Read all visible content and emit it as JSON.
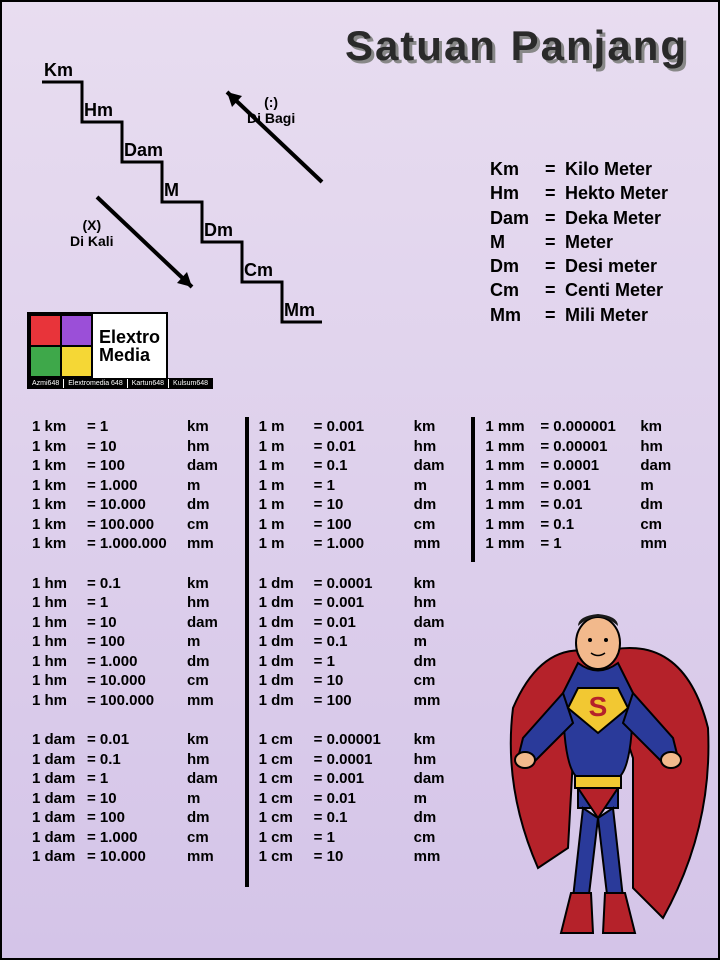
{
  "title": "Satuan Panjang",
  "stairs": {
    "steps": [
      "Km",
      "Hm",
      "Dam",
      "M",
      "Dm",
      "Cm",
      "Mm"
    ],
    "step_width": 40,
    "step_height": 40,
    "line_width": 3,
    "color": "#000000"
  },
  "arrows": {
    "up_label_1": "(:)",
    "up_label_2": "Di Bagi",
    "down_label_1": "(X)",
    "down_label_2": "Di Kali"
  },
  "legend": [
    {
      "abbr": "Km",
      "name": "Kilo Meter"
    },
    {
      "abbr": "Hm",
      "name": "Hekto Meter"
    },
    {
      "abbr": "Dam",
      "name": "Deka Meter"
    },
    {
      "abbr": "M",
      "name": "Meter"
    },
    {
      "abbr": "Dm",
      "name": "Desi meter"
    },
    {
      "abbr": "Cm",
      "name": "Centi Meter"
    },
    {
      "abbr": "Mm",
      "name": "Mili Meter"
    }
  ],
  "logo": {
    "name1": "Elextro",
    "name2": "Media",
    "colors": [
      "#e8343a",
      "#9b4fd8",
      "#3ea84a",
      "#f5d735"
    ],
    "subs": [
      "Azmi648",
      "Elextromedia 648",
      "Kartun648",
      "Kulsum648"
    ]
  },
  "columns": [
    {
      "blocks": [
        {
          "from": "1 km",
          "rows": [
            [
              "= 1",
              "km"
            ],
            [
              "= 10",
              "hm"
            ],
            [
              "= 100",
              "dam"
            ],
            [
              "= 1.000",
              "m"
            ],
            [
              "= 10.000",
              "dm"
            ],
            [
              "= 100.000",
              "cm"
            ],
            [
              "= 1.000.000",
              "mm"
            ]
          ]
        },
        {
          "from": "1 hm",
          "rows": [
            [
              "= 0.1",
              "km"
            ],
            [
              "= 1",
              "hm"
            ],
            [
              "= 10",
              "dam"
            ],
            [
              "= 100",
              "m"
            ],
            [
              "= 1.000",
              "dm"
            ],
            [
              "= 10.000",
              "cm"
            ],
            [
              "= 100.000",
              "mm"
            ]
          ]
        },
        {
          "from": "1 dam",
          "rows": [
            [
              "= 0.01",
              "km"
            ],
            [
              "= 0.1",
              "hm"
            ],
            [
              "= 1",
              "dam"
            ],
            [
              "= 10",
              "m"
            ],
            [
              "= 100",
              "dm"
            ],
            [
              "= 1.000",
              "cm"
            ],
            [
              "= 10.000",
              "mm"
            ]
          ]
        }
      ]
    },
    {
      "blocks": [
        {
          "from": "1 m",
          "rows": [
            [
              "= 0.001",
              "km"
            ],
            [
              "= 0.01",
              "hm"
            ],
            [
              "= 0.1",
              "dam"
            ],
            [
              "= 1",
              "m"
            ],
            [
              "= 10",
              "dm"
            ],
            [
              "= 100",
              "cm"
            ],
            [
              "= 1.000",
              "mm"
            ]
          ]
        },
        {
          "from": "1 dm",
          "rows": [
            [
              "= 0.0001",
              "km"
            ],
            [
              "= 0.001",
              "hm"
            ],
            [
              "= 0.01",
              "dam"
            ],
            [
              "= 0.1",
              "m"
            ],
            [
              "= 1",
              "dm"
            ],
            [
              "= 10",
              "cm"
            ],
            [
              "= 100",
              "mm"
            ]
          ]
        },
        {
          "from": "1 cm",
          "rows": [
            [
              "= 0.00001",
              "km"
            ],
            [
              "= 0.0001",
              "hm"
            ],
            [
              "= 0.001",
              "dam"
            ],
            [
              "= 0.01",
              "m"
            ],
            [
              "= 0.1",
              "dm"
            ],
            [
              "= 1",
              "cm"
            ],
            [
              "= 10",
              "mm"
            ]
          ]
        }
      ]
    },
    {
      "blocks": [
        {
          "from": "1 mm",
          "rows": [
            [
              "= 0.000001",
              "km"
            ],
            [
              "= 0.00001",
              "hm"
            ],
            [
              "= 0.0001",
              "dam"
            ],
            [
              "= 0.001",
              "m"
            ],
            [
              "= 0.01",
              "dm"
            ],
            [
              "= 0.1",
              "cm"
            ],
            [
              "= 1",
              "mm"
            ]
          ]
        }
      ]
    }
  ],
  "hero": {
    "skin": "#f2b98c",
    "suit": "#2a3a9a",
    "cape": "#b5222a",
    "belt": "#f2c832",
    "boots": "#b5222a",
    "emblem_bg": "#f2c832",
    "emblem_s": "#b5222a"
  },
  "colors": {
    "bg_top": "#e8ddf0",
    "bg_bottom": "#d4c4e8",
    "text": "#000000",
    "title": "#2a2a2a",
    "divider": "#000000"
  }
}
